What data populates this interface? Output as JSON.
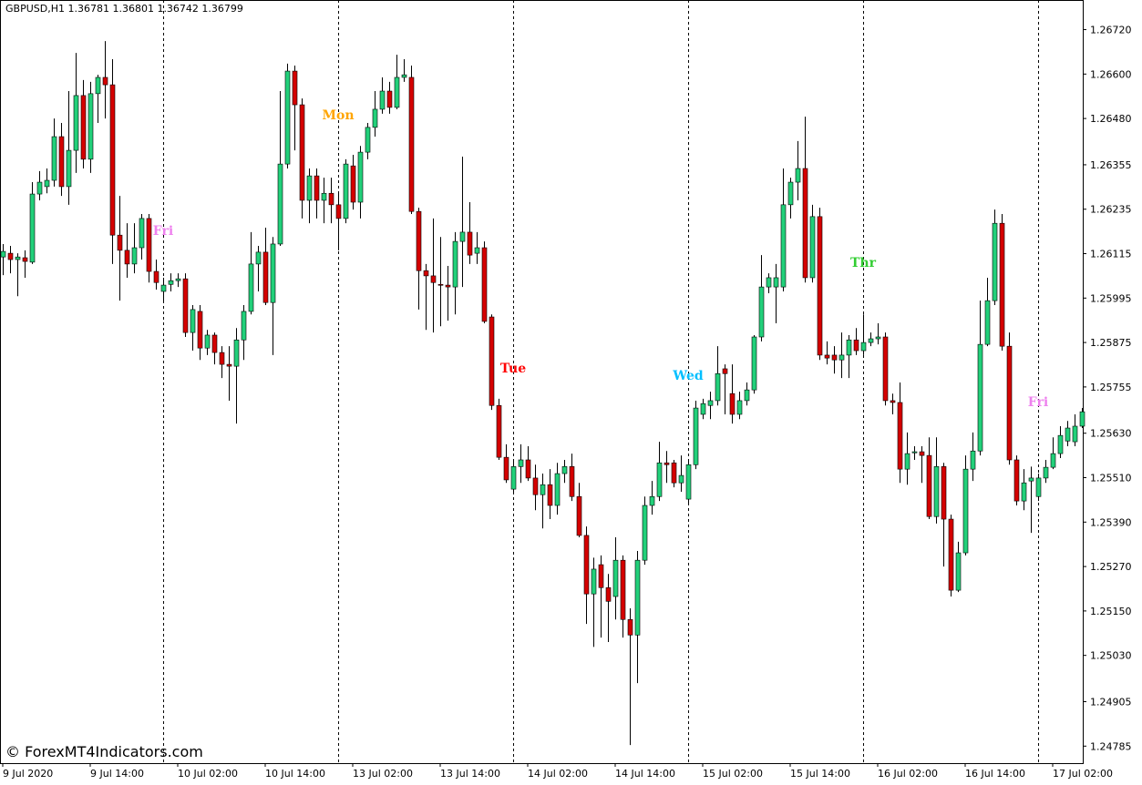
{
  "chart_data": {
    "type": "candlestick",
    "title": "GBPUSD,H1  1.36781 1.36801 1.36742 1.36799",
    "watermark": "© ForexMT4Indicators.com",
    "bull_color": "#22d07a",
    "bear_color": "#d40000",
    "wick_color": "#000000",
    "xlim": [
      -0.375,
      148.125
    ],
    "ylim": [
      1.24739,
      1.268
    ],
    "yticks": [
      {
        "value": 1.2672,
        "label": "1.26720"
      },
      {
        "value": 1.266,
        "label": "1.26600"
      },
      {
        "value": 1.2648,
        "label": "1.26480"
      },
      {
        "value": 1.26355,
        "label": "1.26355"
      },
      {
        "value": 1.26235,
        "label": "1.26235"
      },
      {
        "value": 1.26115,
        "label": "1.26115"
      },
      {
        "value": 1.25995,
        "label": "1.25995"
      },
      {
        "value": 1.25875,
        "label": "1.25875"
      },
      {
        "value": 1.25755,
        "label": "1.25755"
      },
      {
        "value": 1.2563,
        "label": "1.25630"
      },
      {
        "value": 1.2551,
        "label": "1.25510"
      },
      {
        "value": 1.2539,
        "label": "1.25390"
      },
      {
        "value": 1.2527,
        "label": "1.25270"
      },
      {
        "value": 1.2515,
        "label": "1.25150"
      },
      {
        "value": 1.2503,
        "label": "1.25030"
      },
      {
        "value": 1.24905,
        "label": "1.24905"
      },
      {
        "value": 1.24785,
        "label": "1.24785"
      }
    ],
    "xticks": [
      {
        "value": 0,
        "label": "9 Jul 2020"
      },
      {
        "value": 12,
        "label": "9 Jul 14:00"
      },
      {
        "value": 24,
        "label": "10 Jul 02:00"
      },
      {
        "value": 36,
        "label": "10 Jul 14:00"
      },
      {
        "value": 48,
        "label": "13 Jul 02:00"
      },
      {
        "value": 60,
        "label": "13 Jul 14:00"
      },
      {
        "value": 72,
        "label": "14 Jul 02:00"
      },
      {
        "value": 84,
        "label": "14 Jul 14:00"
      },
      {
        "value": 96,
        "label": "15 Jul 02:00"
      },
      {
        "value": 108,
        "label": "15 Jul 14:00"
      },
      {
        "value": 120,
        "label": "16 Jul 02:00"
      },
      {
        "value": 132,
        "label": "16 Jul 14:00"
      },
      {
        "value": 144,
        "label": "17 Jul 02:00"
      }
    ],
    "period_separators": [
      22,
      46,
      70,
      94,
      118,
      142
    ],
    "annotations": [
      {
        "text": "Fri",
        "x": 22,
        "y": 1.26178,
        "color": "#ee82ee"
      },
      {
        "text": "Mon",
        "x": 46,
        "y": 1.2649,
        "color": "#ffa500"
      },
      {
        "text": "Tue",
        "x": 70,
        "y": 1.25806,
        "color": "#ff0000"
      },
      {
        "text": "Wed",
        "x": 94,
        "y": 1.25787,
        "color": "#00bfff"
      },
      {
        "text": "Thr",
        "x": 118,
        "y": 1.26092,
        "color": "#32cd32"
      },
      {
        "text": "Fri",
        "x": 142,
        "y": 1.25715,
        "color": "#ee82ee"
      }
    ],
    "open": [
      1.26106,
      1.26116,
      1.26099,
      1.26104,
      1.26092,
      1.26276,
      1.26296,
      1.26313,
      1.26431,
      1.26296,
      1.26394,
      1.26542,
      1.2637,
      1.26547,
      1.26591,
      1.26571,
      1.26165,
      1.26124,
      1.26087,
      1.26131,
      1.2621,
      1.26067,
      1.26013,
      1.26032,
      1.26042,
      1.26047,
      1.25902,
      1.25959,
      1.2586,
      1.25895,
      1.25848,
      1.25816,
      1.25811,
      1.25882,
      1.25959,
      1.26087,
      1.26119,
      1.25983,
      1.26141,
      1.26357,
      1.26608,
      1.26517,
      1.26259,
      1.26325,
      1.26259,
      1.26278,
      1.26247,
      1.2621,
      1.26352,
      1.26254,
      1.26389,
      1.26456,
      1.26505,
      1.26554,
      1.2651,
      1.26591,
      1.26591,
      1.26229,
      1.26069,
      1.26055,
      1.26032,
      1.2603,
      1.26025,
      1.26148,
      1.26173,
      1.26116,
      1.26131,
      1.25944,
      1.25705,
      1.25565,
      1.25479,
      1.2554,
      1.25558,
      1.25509,
      1.25464,
      1.25491,
      1.25435,
      1.25521,
      1.2554,
      1.25459,
      1.25354,
      1.25196,
      1.25275,
      1.25213,
      1.25189,
      1.25287,
      1.25127,
      1.25085,
      1.25287,
      1.25435,
      1.25459,
      1.2555,
      1.2555,
      1.25496,
      1.25452,
      1.25545,
      1.25681,
      1.25705,
      1.25718,
      1.25804,
      1.25737,
      1.25681,
      1.25718,
      1.25747,
      1.2589,
      1.26025,
      1.26025,
      1.26025,
      1.26247,
      1.26308,
      1.26345,
      1.2605,
      1.26215,
      1.25841,
      1.25841,
      1.25828,
      1.25841,
      1.25882,
      1.25853,
      1.25875,
      1.25885,
      1.2589,
      1.25718,
      1.25713,
      1.25533,
      1.25577,
      1.2558,
      1.2557,
      1.25405,
      1.2554,
      1.25398,
      1.25206,
      1.25307,
      1.25533,
      1.25582,
      1.2587,
      1.25988,
      1.26197,
      1.25865,
      1.25558,
      1.25447,
      1.25501,
      1.25459,
      1.25509,
      1.25538,
      1.25575,
      1.25609,
      1.25607,
      1.25649
    ],
    "high": [
      1.26141,
      1.26136,
      1.26116,
      1.26124,
      1.26308,
      1.26338,
      1.26345,
      1.2648,
      1.26468,
      1.26554,
      1.26657,
      1.26584,
      1.26579,
      1.26598,
      1.26689,
      1.2664,
      1.26271,
      1.26197,
      1.26197,
      1.26222,
      1.26222,
      1.26099,
      1.2605,
      1.26062,
      1.26062,
      1.26062,
      1.25976,
      1.25976,
      1.25909,
      1.25902,
      1.25865,
      1.25865,
      1.25914,
      1.25976,
      1.26173,
      1.26136,
      1.26185,
      1.2616,
      1.26554,
      1.26628,
      1.26623,
      1.26534,
      1.26345,
      1.26345,
      1.2632,
      1.2632,
      1.26283,
      1.2637,
      1.26382,
      1.26406,
      1.26468,
      1.26554,
      1.26591,
      1.26579,
      1.26652,
      1.2664,
      1.26623,
      1.26239,
      1.26087,
      1.2621,
      1.2616,
      1.26082,
      1.26173,
      1.26377,
      1.26254,
      1.26173,
      1.26148,
      1.25951,
      1.25723,
      1.256,
      1.25558,
      1.256,
      1.25595,
      1.25545,
      1.25521,
      1.25533,
      1.2555,
      1.25558,
      1.25575,
      1.25496,
      1.25378,
      1.25294,
      1.253,
      1.2525,
      1.25349,
      1.253,
      1.25157,
      1.25312,
      1.25459,
      1.25501,
      1.25607,
      1.25582,
      1.25558,
      1.2557,
      1.25558,
      1.25718,
      1.25723,
      1.25742,
      1.25865,
      1.25816,
      1.25816,
      1.25742,
      1.25767,
      1.25895,
      1.26111,
      1.26062,
      1.26087,
      1.26345,
      1.2632,
      1.26419,
      1.26485,
      1.26247,
      1.26239,
      1.25878,
      1.25865,
      1.25902,
      1.25895,
      1.25914,
      1.25951,
      1.25902,
      1.25927,
      1.25902,
      1.25737,
      1.25767,
      1.25632,
      1.25595,
      1.25595,
      1.25619,
      1.25619,
      1.2555,
      1.2541,
      1.25337,
      1.2557,
      1.25632,
      1.25988,
      1.2605,
      1.26234,
      1.26222,
      1.25902,
      1.2557,
      1.25533,
      1.2554,
      1.25521,
      1.25558,
      1.25619,
      1.25649,
      1.25663,
      1.25681,
      1.25698
    ],
    "low": [
      1.26057,
      1.26062,
      1.26,
      1.2605,
      1.26087,
      1.26259,
      1.26278,
      1.26296,
      1.26271,
      1.26247,
      1.26333,
      1.26345,
      1.26333,
      1.26468,
      1.2648,
      1.26087,
      1.25988,
      1.2605,
      1.26062,
      1.26099,
      1.26037,
      1.26018,
      1.25988,
      1.26013,
      1.26025,
      1.2589,
      1.25853,
      1.25828,
      1.25841,
      1.25816,
      1.25779,
      1.25718,
      1.25656,
      1.25828,
      1.25951,
      1.26013,
      1.25976,
      1.25841,
      1.26136,
      1.26345,
      1.26394,
      1.2621,
      1.26197,
      1.2621,
      1.26197,
      1.26197,
      1.26124,
      1.26197,
      1.26234,
      1.2621,
      1.2637,
      1.26431,
      1.26493,
      1.26493,
      1.26505,
      1.26579,
      1.26222,
      1.25964,
      1.25909,
      1.25902,
      1.25919,
      1.25934,
      1.25951,
      1.26025,
      1.26087,
      1.26087,
      1.25927,
      1.25693,
      1.25558,
      1.25496,
      1.25472,
      1.25496,
      1.25501,
      1.25422,
      1.25373,
      1.25398,
      1.2541,
      1.25496,
      1.25447,
      1.25349,
      1.25115,
      1.25053,
      1.25078,
      1.25066,
      1.25127,
      1.25078,
      1.24788,
      1.24955,
      1.25275,
      1.2541,
      1.25447,
      1.25496,
      1.25484,
      1.25472,
      1.25442,
      1.25533,
      1.25668,
      1.25668,
      1.25705,
      1.25681,
      1.25656,
      1.25668,
      1.25705,
      1.25737,
      1.25878,
      1.26008,
      1.25927,
      1.26013,
      1.2621,
      1.26259,
      1.26037,
      1.26037,
      1.25828,
      1.25816,
      1.25791,
      1.25779,
      1.25779,
      1.25841,
      1.25841,
      1.25865,
      1.2587,
      1.25705,
      1.25681,
      1.25496,
      1.25491,
      1.25558,
      1.25496,
      1.25398,
      1.25386,
      1.2527,
      1.25189,
      1.25201,
      1.253,
      1.25501,
      1.2557,
      1.25865,
      1.25976,
      1.25853,
      1.25545,
      1.25435,
      1.25422,
      1.25361,
      1.25447,
      1.25496,
      1.25533,
      1.25563,
      1.25595,
      1.25595,
      1.25644
    ],
    "close": [
      1.26121,
      1.26099,
      1.26106,
      1.26094,
      1.26276,
      1.26308,
      1.26313,
      1.26431,
      1.26296,
      1.26394,
      1.26542,
      1.2637,
      1.26547,
      1.26591,
      1.26571,
      1.26165,
      1.26124,
      1.26087,
      1.26131,
      1.2621,
      1.26067,
      1.26037,
      1.2603,
      1.26042,
      1.26047,
      1.25902,
      1.25964,
      1.2586,
      1.25895,
      1.25848,
      1.25816,
      1.25811,
      1.25882,
      1.25959,
      1.26087,
      1.26119,
      1.25983,
      1.26141,
      1.26357,
      1.26608,
      1.26517,
      1.26259,
      1.26325,
      1.26259,
      1.26278,
      1.26247,
      1.2621,
      1.26357,
      1.26254,
      1.26389,
      1.26456,
      1.26505,
      1.26554,
      1.2651,
      1.26591,
      1.26598,
      1.26229,
      1.26069,
      1.26055,
      1.26037,
      1.2603,
      1.26025,
      1.26148,
      1.26173,
      1.26111,
      1.26131,
      1.25932,
      1.25705,
      1.25565,
      1.25504,
      1.2554,
      1.25558,
      1.25509,
      1.25464,
      1.25491,
      1.25435,
      1.25521,
      1.2554,
      1.25459,
      1.25354,
      1.25196,
      1.25263,
      1.25213,
      1.25176,
      1.25287,
      1.25127,
      1.25085,
      1.25287,
      1.25435,
      1.25459,
      1.2555,
      1.25545,
      1.25496,
      1.25516,
      1.25545,
      1.25698,
      1.2571,
      1.25718,
      1.25791,
      1.25791,
      1.25681,
      1.25718,
      1.25747,
      1.2589,
      1.26025,
      1.2605,
      1.2605,
      1.26247,
      1.26308,
      1.26345,
      1.2605,
      1.26215,
      1.25841,
      1.25833,
      1.25828,
      1.25841,
      1.25882,
      1.25853,
      1.25875,
      1.25885,
      1.2589,
      1.25718,
      1.25713,
      1.25533,
      1.25575,
      1.2558,
      1.2557,
      1.25405,
      1.2554,
      1.25398,
      1.25206,
      1.25307,
      1.25533,
      1.25582,
      1.2587,
      1.25988,
      1.26197,
      1.25865,
      1.25558,
      1.25447,
      1.25496,
      1.25509,
      1.25509,
      1.25538,
      1.25575,
      1.25624,
      1.25644,
      1.25649,
      1.25688
    ]
  }
}
